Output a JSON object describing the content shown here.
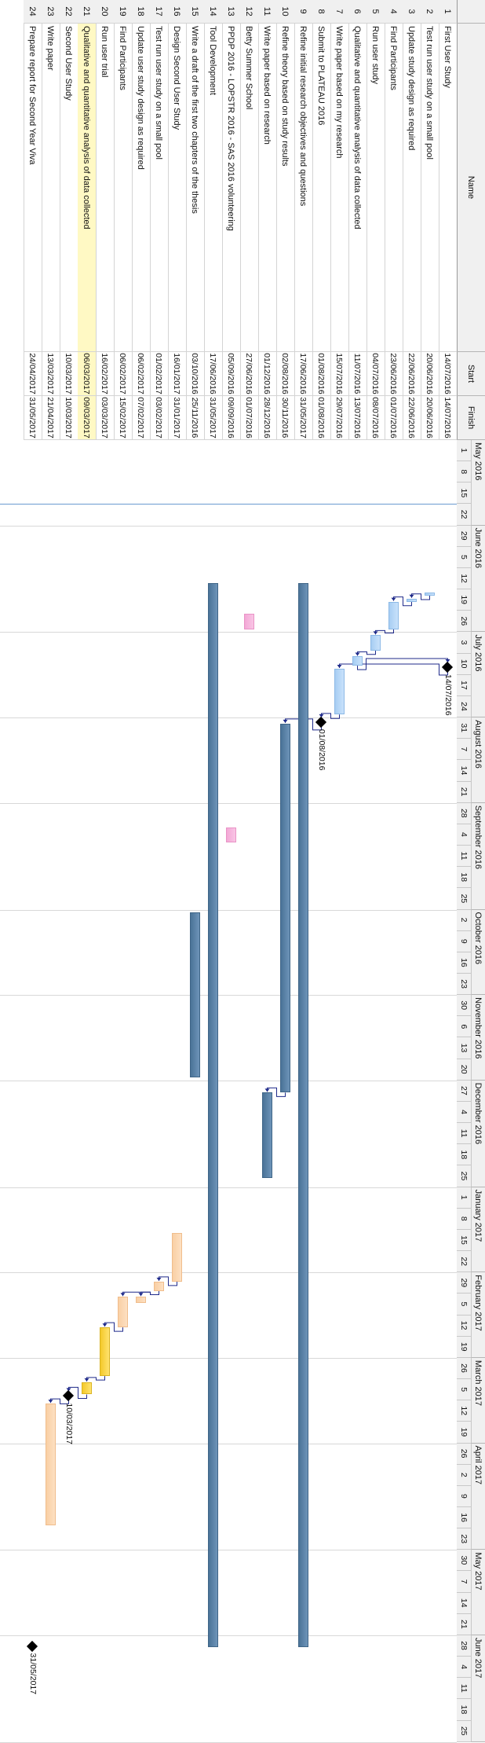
{
  "columns": {
    "id": "",
    "name": "Name",
    "start": "Start",
    "finish": "Finish"
  },
  "months": [
    {
      "label": "May 2016",
      "start": "2016-05-01",
      "end": "2016-05-29"
    },
    {
      "label": "June 2016",
      "start": "2016-05-29",
      "end": "2016-07-03"
    },
    {
      "label": "July 2016",
      "start": "2016-07-03",
      "end": "2016-07-31"
    },
    {
      "label": "August 2016",
      "start": "2016-07-31",
      "end": "2016-08-28"
    },
    {
      "label": "September 2016",
      "start": "2016-08-28",
      "end": "2016-10-02"
    },
    {
      "label": "October 2016",
      "start": "2016-10-02",
      "end": "2016-10-30"
    },
    {
      "label": "November 2016",
      "start": "2016-10-30",
      "end": "2016-11-27"
    },
    {
      "label": "December 2016",
      "start": "2016-11-27",
      "end": "2017-01-01"
    },
    {
      "label": "January 2017",
      "start": "2017-01-01",
      "end": "2017-01-29"
    },
    {
      "label": "February 2017",
      "start": "2017-01-29",
      "end": "2017-02-26"
    },
    {
      "label": "March 2017",
      "start": "2017-02-26",
      "end": "2017-03-26"
    },
    {
      "label": "April 2017",
      "start": "2017-03-26",
      "end": "2017-04-30"
    },
    {
      "label": "May 2017",
      "start": "2017-04-30",
      "end": "2017-05-28"
    },
    {
      "label": "June 2017",
      "start": "2017-05-28",
      "end": "2017-07-02"
    }
  ],
  "weeks": [
    "1",
    "8",
    "15",
    "22",
    "29",
    "5",
    "12",
    "19",
    "26",
    "3",
    "10",
    "17",
    "24",
    "31",
    "7",
    "14",
    "21",
    "28",
    "4",
    "11",
    "18",
    "25",
    "2",
    "9",
    "16",
    "23",
    "30",
    "6",
    "13",
    "20",
    "27",
    "4",
    "11",
    "18",
    "25",
    "1",
    "8",
    "15",
    "22",
    "29",
    "5",
    "12",
    "19",
    "26",
    "5",
    "12",
    "19",
    "26",
    "2",
    "9",
    "16",
    "23",
    "30",
    "7",
    "14",
    "21",
    "28",
    "4",
    "11",
    "18",
    "25"
  ],
  "tasks": [
    {
      "id": "1",
      "name": "First User Study",
      "start": "14/07/2016",
      "finish": "14/07/2016",
      "type": "milestone",
      "label": "14/07/2016"
    },
    {
      "id": "2",
      "name": "Test run user study on a small pool",
      "start": "20/06/2016",
      "finish": "20/06/2016",
      "type": "bar",
      "color": "blue-light"
    },
    {
      "id": "3",
      "name": "Update study design as required",
      "start": "22/06/2016",
      "finish": "22/06/2016",
      "type": "bar",
      "color": "blue-light"
    },
    {
      "id": "4",
      "name": "Find Participants",
      "start": "23/06/2016",
      "finish": "01/07/2016",
      "type": "bar",
      "color": "blue-light"
    },
    {
      "id": "5",
      "name": "Run user study",
      "start": "04/07/2016",
      "finish": "08/07/2016",
      "type": "bar",
      "color": "blue-light"
    },
    {
      "id": "6",
      "name": "Qualitative and quantitative analysis of data collected",
      "start": "11/07/2016",
      "finish": "13/07/2016",
      "type": "bar",
      "color": "blue-light"
    },
    {
      "id": "7",
      "name": "Write paper based on my research",
      "start": "15/07/2016",
      "finish": "29/07/2016",
      "type": "bar",
      "color": "blue-light"
    },
    {
      "id": "8",
      "name": "Submit to PLATEAU 2016",
      "start": "01/08/2016",
      "finish": "01/08/2016",
      "type": "milestone",
      "label": "01/08/2016"
    },
    {
      "id": "9",
      "name": "Refine initial research objectives and questions",
      "start": "17/06/2016",
      "finish": "31/05/2017",
      "type": "bar",
      "color": "blue-dark"
    },
    {
      "id": "10",
      "name": "Refine theory based on study results",
      "start": "02/08/2016",
      "finish": "30/11/2016",
      "type": "bar",
      "color": "blue-dark"
    },
    {
      "id": "11",
      "name": "Write paper based on research",
      "start": "01/12/2016",
      "finish": "28/12/2016",
      "type": "bar",
      "color": "blue-dark"
    },
    {
      "id": "12",
      "name": "Betty Summer School",
      "start": "27/06/2016",
      "finish": "01/07/2016",
      "type": "bar",
      "color": "pink"
    },
    {
      "id": "13",
      "name": "PPDP 2016 - LOPSTR 2016 - SAS 2016 volunteering",
      "start": "05/09/2016",
      "finish": "09/09/2016",
      "type": "bar",
      "color": "pink"
    },
    {
      "id": "14",
      "name": "Tool Development",
      "start": "17/06/2016",
      "finish": "31/05/2017",
      "type": "bar",
      "color": "blue-dark"
    },
    {
      "id": "15",
      "name": "Write a draft of the first two chapters of the thesis",
      "start": "03/10/2016",
      "finish": "25/11/2016",
      "type": "bar",
      "color": "blue-dark"
    },
    {
      "id": "16",
      "name": "Design Second User Study",
      "start": "16/01/2017",
      "finish": "31/01/2017",
      "type": "bar",
      "color": "orange"
    },
    {
      "id": "17",
      "name": "Test run user study on a small pool",
      "start": "01/02/2017",
      "finish": "03/02/2017",
      "type": "bar",
      "color": "orange"
    },
    {
      "id": "18",
      "name": "Update user study design as required",
      "start": "06/02/2017",
      "finish": "07/02/2017",
      "type": "bar",
      "color": "orange"
    },
    {
      "id": "19",
      "name": "Find Participants",
      "start": "06/02/2017",
      "finish": "15/02/2017",
      "type": "bar",
      "color": "orange"
    },
    {
      "id": "20",
      "name": "Run user trial",
      "start": "16/02/2017",
      "finish": "03/03/2017",
      "type": "bar",
      "color": "gold"
    },
    {
      "id": "21",
      "name": "Qualitative and quantitative analysis of data collected",
      "start": "06/03/2017",
      "finish": "09/03/2017",
      "type": "bar",
      "color": "gold",
      "highlight": true
    },
    {
      "id": "22",
      "name": "Second User Study",
      "start": "10/03/2017",
      "finish": "10/03/2017",
      "type": "milestone",
      "label": "10/03/2017"
    },
    {
      "id": "23",
      "name": "Write paper",
      "start": "13/03/2017",
      "finish": "21/04/2017",
      "type": "bar",
      "color": "orange"
    },
    {
      "id": "24",
      "name": "Prepare report for Second Year Viva",
      "start": "24/04/2017",
      "finish": "31/05/2017",
      "type": "milestone",
      "label": "31/05/2017"
    }
  ],
  "links": [
    [
      2,
      3
    ],
    [
      3,
      4
    ],
    [
      4,
      5
    ],
    [
      5,
      6
    ],
    [
      6,
      1
    ],
    [
      1,
      7
    ],
    [
      7,
      8
    ],
    [
      8,
      10
    ],
    [
      10,
      11
    ],
    [
      16,
      17
    ],
    [
      17,
      18
    ],
    [
      17,
      19
    ],
    [
      19,
      20
    ],
    [
      20,
      21
    ],
    [
      21,
      22
    ],
    [
      22,
      23
    ]
  ],
  "colors": {
    "header_bg": "#f0f0f0",
    "today_line": "#6a9ad0",
    "link_line": "#1f2a8a",
    "highlight_row": "#fff9c4"
  }
}
